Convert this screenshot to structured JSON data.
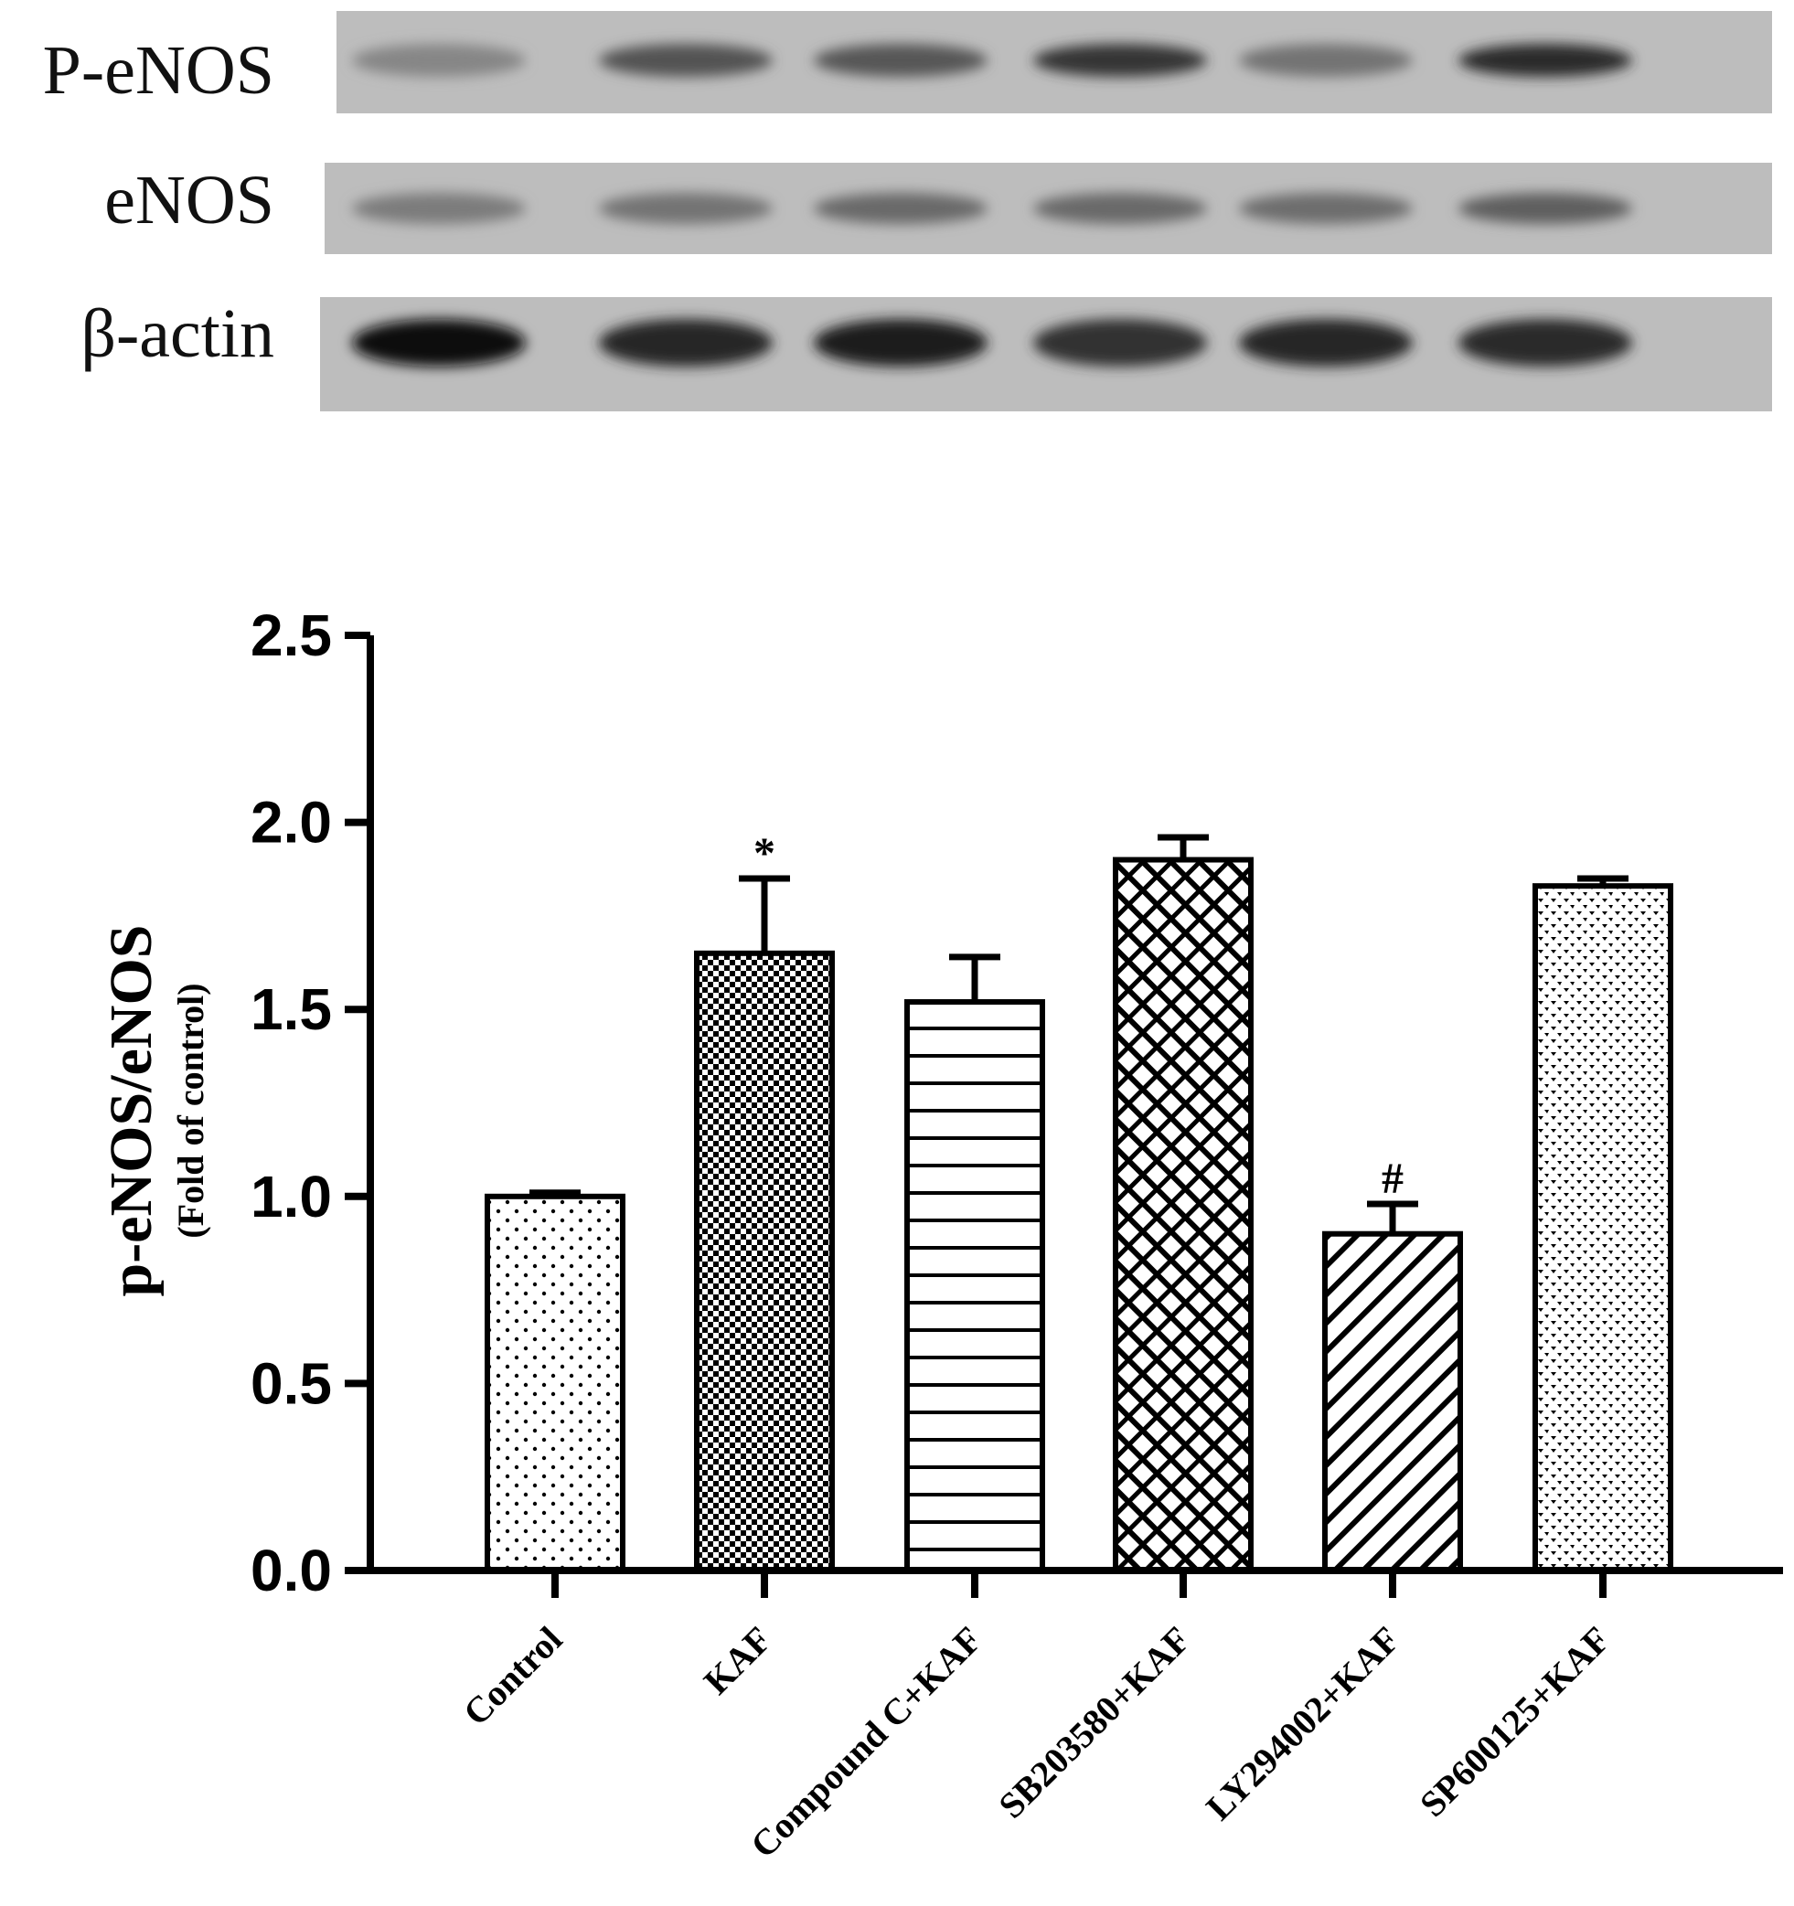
{
  "blot": {
    "rows": [
      {
        "label": "P-eNOS",
        "intensities": [
          0.35,
          0.62,
          0.6,
          0.78,
          0.45,
          0.82
        ]
      },
      {
        "label": "eNOS",
        "intensities": [
          0.4,
          0.45,
          0.5,
          0.5,
          0.48,
          0.55
        ]
      },
      {
        "label": "β-actin",
        "intensities": [
          0.98,
          0.85,
          0.9,
          0.8,
          0.85,
          0.82
        ]
      }
    ]
  },
  "chart_data": {
    "type": "bar",
    "categories": [
      "Control",
      "KAF",
      "Compound C+KAF",
      "SB203580+KAF",
      "LY294002+KAF",
      "SP600125+KAF"
    ],
    "values": [
      1.0,
      1.65,
      1.52,
      1.9,
      0.9,
      1.83
    ],
    "errors": [
      0.01,
      0.2,
      0.12,
      0.06,
      0.08,
      0.02
    ],
    "annotations": [
      "",
      "*",
      "",
      "",
      "#",
      ""
    ],
    "patterns": [
      "dots",
      "checker",
      "hlines",
      "brick-diagonal",
      "diagonal-lines",
      "dense-dots"
    ],
    "title": "",
    "xlabel": "",
    "ylabel": "p-eNOS/eNOS",
    "ylabel_sub": "(Fold of control)",
    "ylim": [
      0,
      2.5
    ],
    "yticks": [
      "0.0",
      "0.5",
      "1.0",
      "1.5",
      "2.0",
      "2.5"
    ],
    "grid": false,
    "legend": "none"
  }
}
